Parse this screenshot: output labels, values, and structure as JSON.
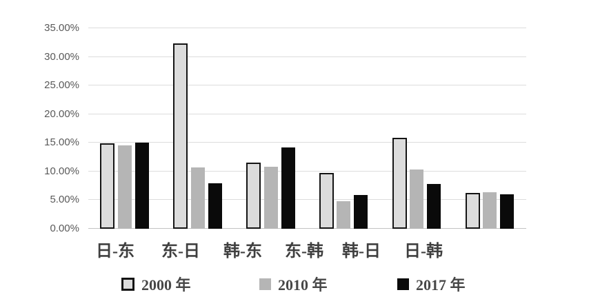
{
  "chart_data": {
    "type": "bar",
    "title": "",
    "categories": [
      "日-东",
      "东-日",
      "韩-东",
      "东-韩",
      "韩-日",
      "日-韩"
    ],
    "series": [
      {
        "name": "2000 年",
        "values": [
          14.9,
          32.4,
          11.5,
          9.8,
          15.9,
          6.2
        ]
      },
      {
        "name": "2010 年",
        "values": [
          14.6,
          10.7,
          10.8,
          4.8,
          10.4,
          6.4
        ]
      },
      {
        "name": "2017 年",
        "values": [
          15.0,
          8.0,
          14.2,
          5.9,
          7.8,
          6.0
        ]
      }
    ],
    "xlabel": "",
    "ylabel": "",
    "ylim": [
      0,
      35
    ],
    "ytick_step": 5,
    "ytick_labels": [
      "0.00%",
      "5.00%",
      "10.00%",
      "15.00%",
      "20.00%",
      "25.00%",
      "30.00%",
      "35.00%"
    ],
    "grid": true,
    "legend_position": "bottom",
    "colors": {
      "series_2000_fill": "#dcdcdc",
      "series_2000_border": "#141414",
      "series_2010_fill": "#b5b5b5",
      "series_2017_fill": "#0a0a0a",
      "gridline": "#dcdcdc",
      "baseline": "#c2c2c2",
      "ytick_text": "#595959",
      "category_text": "#3f3f3f",
      "legend_text": "#474747",
      "background": "#ffffff"
    }
  }
}
